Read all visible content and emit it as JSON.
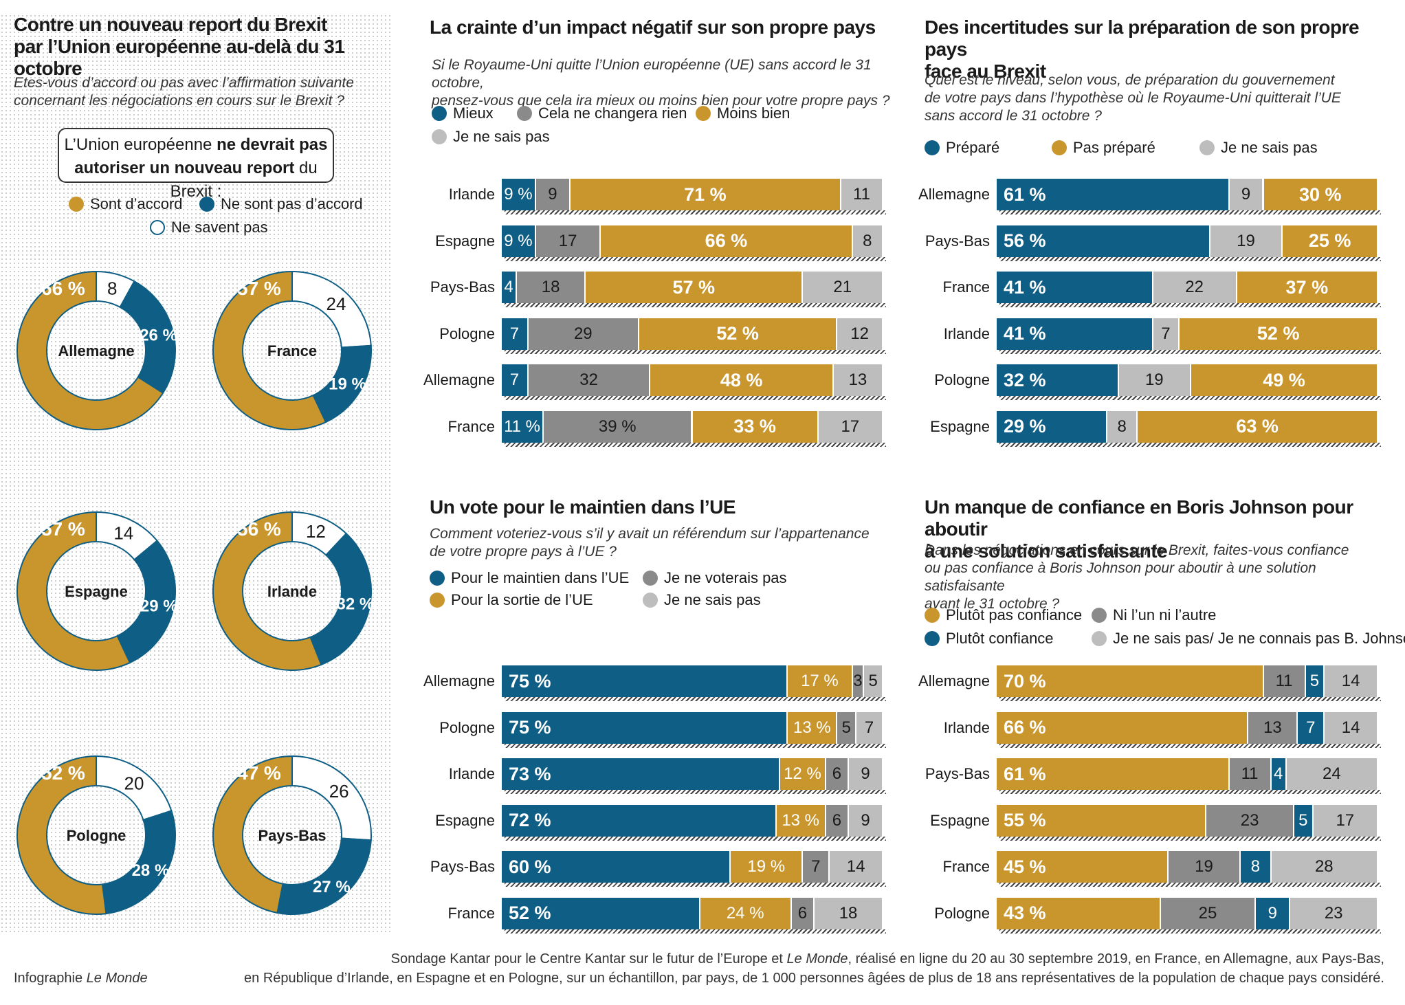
{
  "colors": {
    "blue": "#0e5e85",
    "ochre": "#c9962e",
    "darkgrey": "#8a8a8a",
    "lightgrey": "#bdbdbd",
    "white": "#ffffff"
  },
  "panel1": {
    "title": "Contre un nouveau report du Brexit\npar l’Union européenne au-delà du 31 octobre",
    "subtitle": "Etes-vous d’accord ou pas avec l’affirmation suivante\nconcernant les négociations en cours sur le Brexit ?",
    "callout_line1_a": "L’Union européenne ",
    "callout_line1_b": "ne devrait pas",
    "callout_line2_a": "autoriser un nouveau report",
    "callout_line2_b": " du Brexit :",
    "legend": [
      "Sont d’accord",
      "Ne sont pas d’accord",
      "Ne savent pas"
    ]
  },
  "panel2": {
    "title": "La crainte d’un impact négatif sur son propre pays",
    "subtitle": "Si le Royaume-Uni quitte l’Union européenne (UE) sans accord le 31 octobre,\n pensez-vous que cela ira mieux ou moins bien pour votre propre pays ?",
    "legend": [
      "Mieux",
      "Cela ne changera rien",
      "Moins bien",
      "Je ne sais pas"
    ]
  },
  "panel3": {
    "title": "Des incertitudes sur la préparation de son propre pays\nface au Brexit",
    "subtitle": "Quel est le niveau, selon vous, de préparation du gouvernement\nde votre pays dans l’hypothèse où le Royaume-Uni quitterait l’UE\nsans accord le 31 octobre ?",
    "legend": [
      "Préparé",
      "Pas préparé",
      "Je ne sais pas"
    ]
  },
  "panel4": {
    "title": "Un vote pour le maintien dans l’UE",
    "subtitle": "Comment voteriez-vous s’il y avait un référendum sur l’appartenance\nde votre propre pays à l’UE ?",
    "legend": [
      "Pour le maintien dans l’UE",
      "Je ne voterais pas",
      "Pour la sortie de l’UE",
      "Je ne sais pas"
    ]
  },
  "panel5": {
    "title": "Un manque de confiance en Boris Johnson pour aboutir\nà une solution satisfaisante",
    "subtitle": "Dans les négociations en cours sur le Brexit, faites-vous confiance\nou pas confiance à Boris Johnson pour aboutir à une solution satisfaisante\navant le 31 octobre ?",
    "legend": [
      "Plutôt pas confiance",
      "Ni l’un ni l’autre",
      "Plutôt confiance",
      "Je ne sais pas/ Je ne connais pas B. Johnson"
    ]
  },
  "footer": {
    "credit_a": "Infographie ",
    "credit_b": "Le Monde",
    "source1_a": "Sondage Kantar pour le Centre Kantar sur le futur de l’Europe et ",
    "source1_b": "Le Monde",
    "source1_c": ", réalisé en ligne du 20 au 30 septembre 2019, en France, en Allemagne, aux Pays-Bas,",
    "source2": "en République d’Irlande, en Espagne et en Pologne, sur un échantillon, par pays, de 1 000 personnes âgées de plus de 18 ans représentatives de la population de chaque pays considéré."
  },
  "chart_data": [
    {
      "type": "pie",
      "variant": "donut",
      "series_names": [
        "Sont d’accord",
        "Ne sont pas d’accord",
        "Ne savent pas"
      ],
      "donuts": [
        {
          "country": "Allemagne",
          "values": [
            66,
            26,
            8
          ],
          "labels": [
            "66 %",
            "26 %",
            "8"
          ]
        },
        {
          "country": "France",
          "values": [
            57,
            19,
            24
          ],
          "labels": [
            "57 %",
            "19 %",
            "24"
          ]
        },
        {
          "country": "Espagne",
          "values": [
            57,
            29,
            14
          ],
          "labels": [
            "57 %",
            "29 %",
            "14"
          ]
        },
        {
          "country": "Irlande",
          "values": [
            56,
            32,
            12
          ],
          "labels": [
            "56 %",
            "32 %",
            "12"
          ]
        },
        {
          "country": "Pologne",
          "values": [
            52,
            28,
            20
          ],
          "labels": [
            "52 %",
            "28 %",
            "20"
          ]
        },
        {
          "country": "Pays-Bas",
          "values": [
            47,
            27,
            26
          ],
          "labels": [
            "47 %",
            "27 %",
            "26"
          ]
        }
      ]
    },
    {
      "type": "bar",
      "stacked": true,
      "orientation": "horizontal",
      "categories": [
        "Irlande",
        "Espagne",
        "Pays-Bas",
        "Pologne",
        "Allemagne",
        "France"
      ],
      "series": [
        {
          "name": "Mieux",
          "values": [
            9,
            9,
            4,
            7,
            7,
            11
          ],
          "labels": [
            "9 %",
            "9 %",
            "4",
            "7",
            "7",
            "11 %"
          ]
        },
        {
          "name": "Cela ne changera rien",
          "values": [
            9,
            17,
            18,
            29,
            32,
            39
          ],
          "labels": [
            "9",
            "17",
            "18",
            "29",
            "32",
            "39 %"
          ]
        },
        {
          "name": "Moins bien",
          "values": [
            71,
            66,
            57,
            52,
            48,
            33
          ],
          "labels": [
            "71 %",
            "66 %",
            "57 %",
            "52 %",
            "48 %",
            "33 %"
          ]
        },
        {
          "name": "Je ne sais pas",
          "values": [
            11,
            8,
            21,
            12,
            13,
            17
          ],
          "labels": [
            "11",
            "8",
            "21",
            "12",
            "13",
            "17"
          ]
        }
      ]
    },
    {
      "type": "bar",
      "stacked": true,
      "orientation": "horizontal",
      "categories": [
        "Allemagne",
        "Pays-Bas",
        "France",
        "Irlande",
        "Pologne",
        "Espagne"
      ],
      "series": [
        {
          "name": "Préparé",
          "values": [
            61,
            56,
            41,
            41,
            32,
            29
          ],
          "labels": [
            "61 %",
            "56 %",
            "41 %",
            "41 %",
            "32 %",
            "29 %"
          ]
        },
        {
          "name": "Je ne sais pas",
          "values": [
            9,
            19,
            22,
            7,
            19,
            8
          ],
          "labels": [
            "9",
            "19",
            "22",
            "7",
            "19",
            "8"
          ]
        },
        {
          "name": "Pas préparé",
          "values": [
            30,
            25,
            37,
            52,
            49,
            63
          ],
          "labels": [
            "30 %",
            "25 %",
            "37 %",
            "52 %",
            "49 %",
            "63 %"
          ]
        }
      ]
    },
    {
      "type": "bar",
      "stacked": true,
      "orientation": "horizontal",
      "categories": [
        "Allemagne",
        "Pologne",
        "Irlande",
        "Espagne",
        "Pays-Bas",
        "France"
      ],
      "series": [
        {
          "name": "Pour le maintien dans l’UE",
          "values": [
            75,
            75,
            73,
            72,
            60,
            52
          ],
          "labels": [
            "75 %",
            "75 %",
            "73 %",
            "72 %",
            "60 %",
            "52 %"
          ]
        },
        {
          "name": "Pour la sortie de l’UE",
          "values": [
            17,
            13,
            12,
            13,
            19,
            24
          ],
          "labels": [
            "17 %",
            "13 %",
            "12 %",
            "13 %",
            "19 %",
            "24 %"
          ]
        },
        {
          "name": "Je ne voterais pas",
          "values": [
            3,
            5,
            6,
            6,
            7,
            6
          ],
          "labels": [
            "3",
            "5",
            "6",
            "6",
            "7",
            "6"
          ]
        },
        {
          "name": "Je ne sais pas",
          "values": [
            5,
            7,
            9,
            9,
            14,
            18
          ],
          "labels": [
            "5",
            "7",
            "9",
            "9",
            "14",
            "18"
          ]
        }
      ]
    },
    {
      "type": "bar",
      "stacked": true,
      "orientation": "horizontal",
      "categories": [
        "Allemagne",
        "Irlande",
        "Pays-Bas",
        "Espagne",
        "France",
        "Pologne"
      ],
      "series": [
        {
          "name": "Plutôt pas confiance",
          "values": [
            70,
            66,
            61,
            55,
            45,
            43
          ],
          "labels": [
            "70 %",
            "66 %",
            "61 %",
            "55 %",
            "45 %",
            "43 %"
          ]
        },
        {
          "name": "Ni l’un ni l’autre",
          "values": [
            11,
            13,
            11,
            23,
            19,
            25
          ],
          "labels": [
            "11",
            "13",
            "11",
            "23",
            "19",
            "25"
          ]
        },
        {
          "name": "Plutôt confiance",
          "values": [
            5,
            7,
            4,
            5,
            8,
            9
          ],
          "labels": [
            "5",
            "7",
            "4",
            "5",
            "8",
            "9"
          ]
        },
        {
          "name": "Je ne sais pas/ Je ne connais pas B. Johnson",
          "values": [
            14,
            14,
            24,
            17,
            28,
            23
          ],
          "labels": [
            "14",
            "14",
            "24",
            "17",
            "28",
            "23"
          ]
        }
      ]
    }
  ]
}
